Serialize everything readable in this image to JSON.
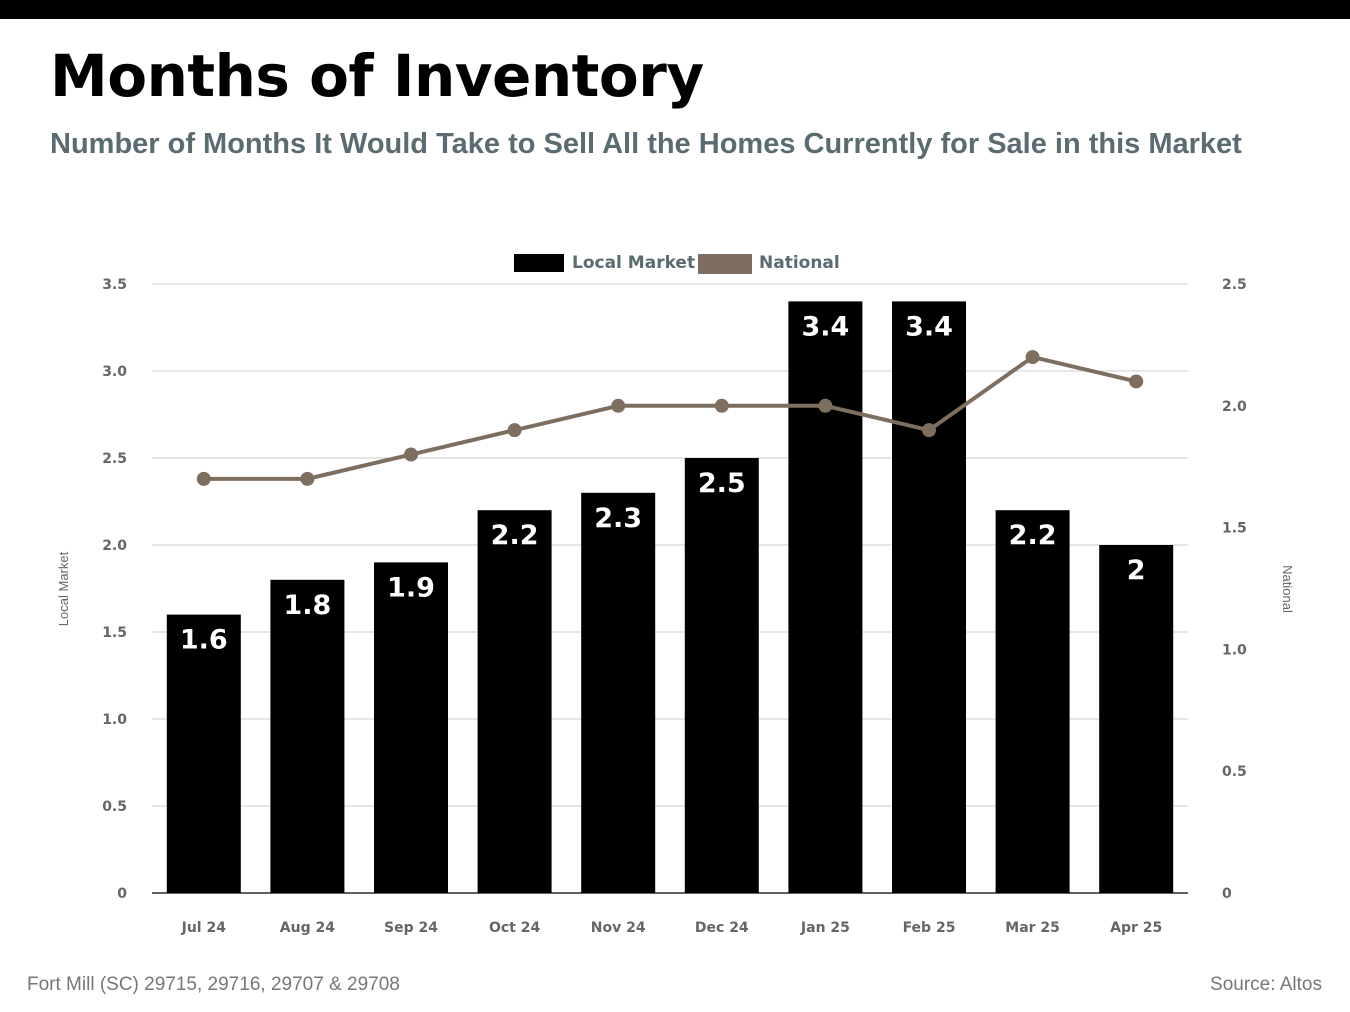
{
  "header": {
    "title": "Months of Inventory",
    "subtitle": "Number of Months It Would Take to Sell All the Homes Currently for Sale in this Market"
  },
  "footer": {
    "location": "Fort Mill (SC) 29715, 29716, 29707 & 29708",
    "source": "Source: Altos"
  },
  "colors": {
    "bar": "#000000",
    "line": "#7d6e5f",
    "grid": "#cccccc",
    "axis_text": "#666666",
    "subtitle": "#5b6b72"
  },
  "chart_data": {
    "type": "bar",
    "categories": [
      "Jul 24",
      "Aug 24",
      "Sep 24",
      "Oct 24",
      "Nov 24",
      "Dec 24",
      "Jan 25",
      "Feb 25",
      "Mar 25",
      "Apr 25"
    ],
    "series": [
      {
        "name": "Local Market",
        "type": "bar",
        "axis": "left",
        "values": [
          1.6,
          1.8,
          1.9,
          2.2,
          2.3,
          2.5,
          3.4,
          3.4,
          2.2,
          2
        ],
        "labels": [
          "1.6",
          "1.8",
          "1.9",
          "2.2",
          "2.3",
          "2.5",
          "3.4",
          "3.4",
          "2.2",
          "2"
        ]
      },
      {
        "name": "National",
        "type": "line",
        "axis": "right",
        "values": [
          1.7,
          1.7,
          1.8,
          1.9,
          2.0,
          2.0,
          2.0,
          1.9,
          2.2,
          2.1
        ]
      }
    ],
    "ylabel": "Local Market",
    "y2label": "National",
    "ylim": [
      0,
      3.5
    ],
    "y2lim": [
      0,
      2.5
    ],
    "yticks": [
      "0",
      "0.5",
      "1.0",
      "1.5",
      "2.0",
      "2.5",
      "3.0",
      "3.5"
    ],
    "y2ticks": [
      "0",
      "0.5",
      "1.0",
      "1.5",
      "2.0",
      "2.5"
    ],
    "grid": true,
    "legend_position": "top-center"
  }
}
